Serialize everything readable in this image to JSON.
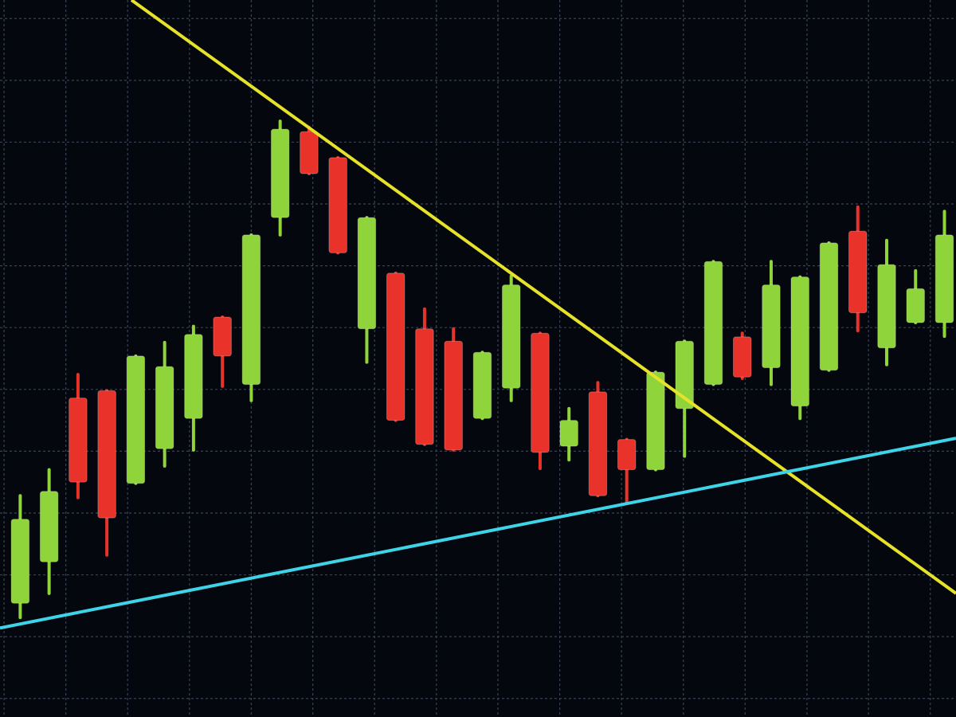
{
  "chart_data": {
    "type": "candlestick",
    "x": [
      0,
      1,
      2,
      3,
      4,
      5,
      6,
      7,
      8,
      9,
      10,
      11,
      12,
      13,
      14,
      15,
      16,
      17,
      18,
      19,
      20,
      21,
      22,
      23,
      24,
      25,
      26,
      27,
      28,
      29,
      30,
      31,
      32
    ],
    "open": [
      1.54,
      2.21,
      4.86,
      4.98,
      3.48,
      4.04,
      4.53,
      6.17,
      5.08,
      7.78,
      9.17,
      8.75,
      5.98,
      6.88,
      5.98,
      5.78,
      4.53,
      5.02,
      5.91,
      4.08,
      4.96,
      4.19,
      3.7,
      4.69,
      5.08,
      5.85,
      5.35,
      4.73,
      5.31,
      7.56,
      5.67,
      6.08,
      6.08
    ],
    "high": [
      3.28,
      3.7,
      5.24,
      4.98,
      5.54,
      5.76,
      6.02,
      6.17,
      7.5,
      9.34,
      9.24,
      8.75,
      7.78,
      6.88,
      6.3,
      5.98,
      5.6,
      6.83,
      5.91,
      4.69,
      5.11,
      4.19,
      5.28,
      5.78,
      7.07,
      5.91,
      7.07,
      6.82,
      7.37,
      7.95,
      7.41,
      6.92,
      7.88
    ],
    "low": [
      1.31,
      1.7,
      3.25,
      2.32,
      3.48,
      3.76,
      4.02,
      5.05,
      4.82,
      7.5,
      8.49,
      7.21,
      5.44,
      4.5,
      4.11,
      4.02,
      4.53,
      4.82,
      3.72,
      3.86,
      3.28,
      3.18,
      3.7,
      3.92,
      5.08,
      5.18,
      5.08,
      4.53,
      5.31,
      5.95,
      5.4,
      6.08,
      5.86
    ],
    "close": [
      2.9,
      3.35,
      3.5,
      2.92,
      5.54,
      5.37,
      5.89,
      5.54,
      7.5,
      9.21,
      8.49,
      7.21,
      7.78,
      4.5,
      4.11,
      4.02,
      5.6,
      6.69,
      3.98,
      4.5,
      3.28,
      3.7,
      5.28,
      5.78,
      7.07,
      5.2,
      6.69,
      6.82,
      7.37,
      6.24,
      7.02,
      6.63,
      7.5
    ],
    "up_color": "#8fd43a",
    "down_color": "#e8322a",
    "xlim": [
      -0.7,
      32.4
    ],
    "ylim": [
      -0.3,
      11.3
    ],
    "xticks": [
      -0.56,
      1.58,
      3.72,
      5.86,
      8.0,
      10.13,
      12.27,
      14.41,
      16.54,
      18.68,
      20.82,
      22.96,
      25.1,
      27.24,
      29.37,
      31.51
    ],
    "yticks": [
      0,
      1,
      2,
      3,
      4,
      5,
      6,
      7,
      8,
      9,
      10,
      11
    ],
    "grid": true,
    "trendlines": [
      {
        "color": "#e6e22a",
        "x": [
          3.85,
          32.4
        ],
        "values": [
          11.3,
          1.7
        ]
      },
      {
        "color": "#3fd3e8",
        "x": [
          -0.7,
          32.4
        ],
        "values": [
          1.14,
          4.21
        ]
      }
    ]
  }
}
